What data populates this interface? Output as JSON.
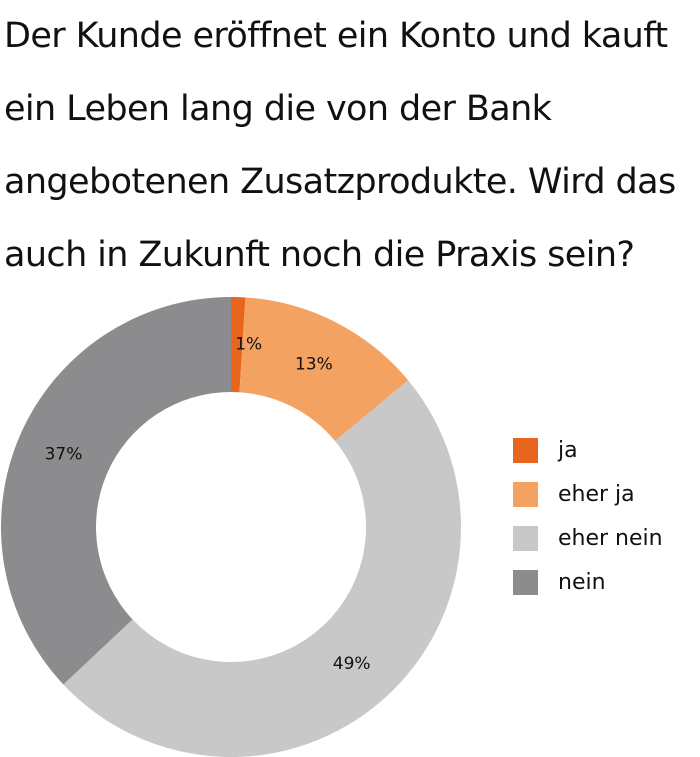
{
  "chart_data": {
    "type": "pie",
    "title_lines": [
      "Der Kunde eröffnet ein Konto und kauft",
      "ein Leben lang die von der Bank",
      "angebotenen Zusatzprodukte. Wird das",
      "auch in Zukunft noch die Praxis sein?"
    ],
    "donut": true,
    "slices": [
      {
        "label": "ja",
        "value": 1,
        "value_label": "1%",
        "color": "#e8651e"
      },
      {
        "label": "eher ja",
        "value": 13,
        "value_label": "13%",
        "color": "#f3a262"
      },
      {
        "label": "eher nein",
        "value": 49,
        "value_label": "49%",
        "color": "#c8c8c8"
      },
      {
        "label": "nein",
        "value": 37,
        "value_label": "37%",
        "color": "#8c8c8e"
      }
    ],
    "legend_position": "right"
  }
}
